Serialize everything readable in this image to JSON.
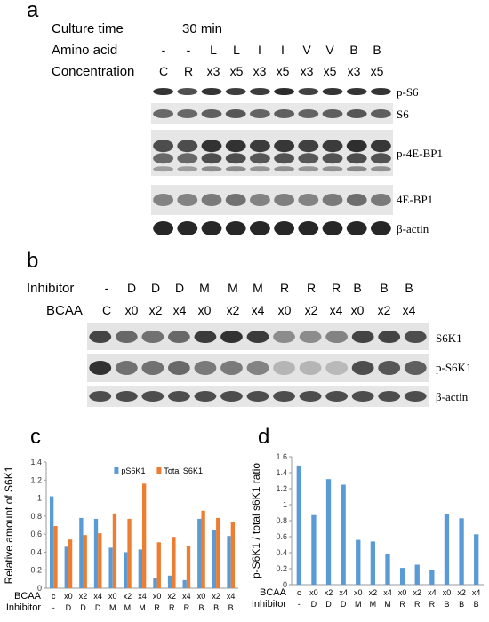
{
  "panel_a": {
    "letter": "a",
    "culture_label": "Culture time",
    "culture_value": "30 min",
    "amino_label": "Amino acid",
    "amino_lanes": [
      "-",
      "-",
      "L",
      "L",
      "I",
      "I",
      "V",
      "V",
      "B",
      "B"
    ],
    "conc_label": "Concentration",
    "conc_lanes": [
      "C",
      "R",
      "x3",
      "x5",
      "x3",
      "x5",
      "x3",
      "x5",
      "x3",
      "x5"
    ],
    "blots": [
      "p-S6",
      "S6",
      "p-4E-BP1",
      "4E-BP1",
      "β-actin"
    ]
  },
  "panel_b": {
    "letter": "b",
    "inhibitor_label": "Inhibitor",
    "inhibitor_lanes": [
      "-",
      "D",
      "D",
      "D",
      "M",
      "M",
      "M",
      "R",
      "R",
      "R",
      "B",
      "B",
      "B"
    ],
    "bcaa_label": "BCAA",
    "bcaa_lanes": [
      "C",
      "x0",
      "x2",
      "x4",
      "x0",
      "x2",
      "x4",
      "x0",
      "x2",
      "x4",
      "x0",
      "x2",
      "x4"
    ],
    "blots": [
      "S6K1",
      "p-S6K1",
      "β-actin"
    ]
  },
  "chart_data": [
    {
      "type": "bar",
      "panel": "c",
      "ylabel": "Relative amount of S6K1",
      "ylim": [
        0,
        1.4
      ],
      "yticks": [
        "0",
        "0.2",
        "0.4",
        "0.6",
        "0.8",
        "1",
        "1.2",
        "1.4"
      ],
      "categories": [
        "c",
        "x0",
        "x2",
        "x4",
        "x0",
        "x2",
        "x4",
        "x0",
        "x2",
        "x4",
        "x0",
        "x2",
        "x4"
      ],
      "inhibitor_row": [
        "-",
        "D",
        "D",
        "D",
        "M",
        "M",
        "M",
        "R",
        "R",
        "R",
        "B",
        "B",
        "B"
      ],
      "row_labels": [
        "BCAA",
        "Inhibitor"
      ],
      "series": [
        {
          "name": "pS6K1",
          "color": "#5b9bd5",
          "values": [
            1.02,
            0.46,
            0.78,
            0.77,
            0.45,
            0.4,
            0.43,
            0.11,
            0.14,
            0.09,
            0.77,
            0.65,
            0.58
          ]
        },
        {
          "name": "Total S6K1",
          "color": "#ed7d31",
          "values": [
            0.69,
            0.54,
            0.59,
            0.61,
            0.83,
            0.77,
            1.16,
            0.51,
            0.57,
            0.47,
            0.86,
            0.78,
            0.74
          ]
        }
      ],
      "legend": "top-right",
      "grid": false
    },
    {
      "type": "bar",
      "panel": "d",
      "ylabel": "p-S6K1 / total s6K1 ratio",
      "ylim": [
        0,
        1.6
      ],
      "yticks": [
        "0",
        "0.2",
        "0.4",
        "0.6",
        "0.8",
        "1",
        "1.2",
        "1.4",
        "1.6"
      ],
      "categories": [
        "c",
        "x0",
        "x2",
        "x4",
        "x0",
        "x2",
        "x4",
        "x0",
        "x2",
        "x4",
        "x0",
        "x2",
        "x4"
      ],
      "inhibitor_row": [
        "-",
        "D",
        "D",
        "D",
        "M",
        "M",
        "M",
        "R",
        "R",
        "R",
        "B",
        "B",
        "B"
      ],
      "row_labels": [
        "BCAA",
        "Inhibitor"
      ],
      "series": [
        {
          "name": "",
          "color": "#5b9bd5",
          "values": [
            1.49,
            0.87,
            1.32,
            1.25,
            0.56,
            0.54,
            0.38,
            0.21,
            0.25,
            0.18,
            0.88,
            0.83,
            0.63
          ]
        }
      ],
      "grid": false
    }
  ]
}
